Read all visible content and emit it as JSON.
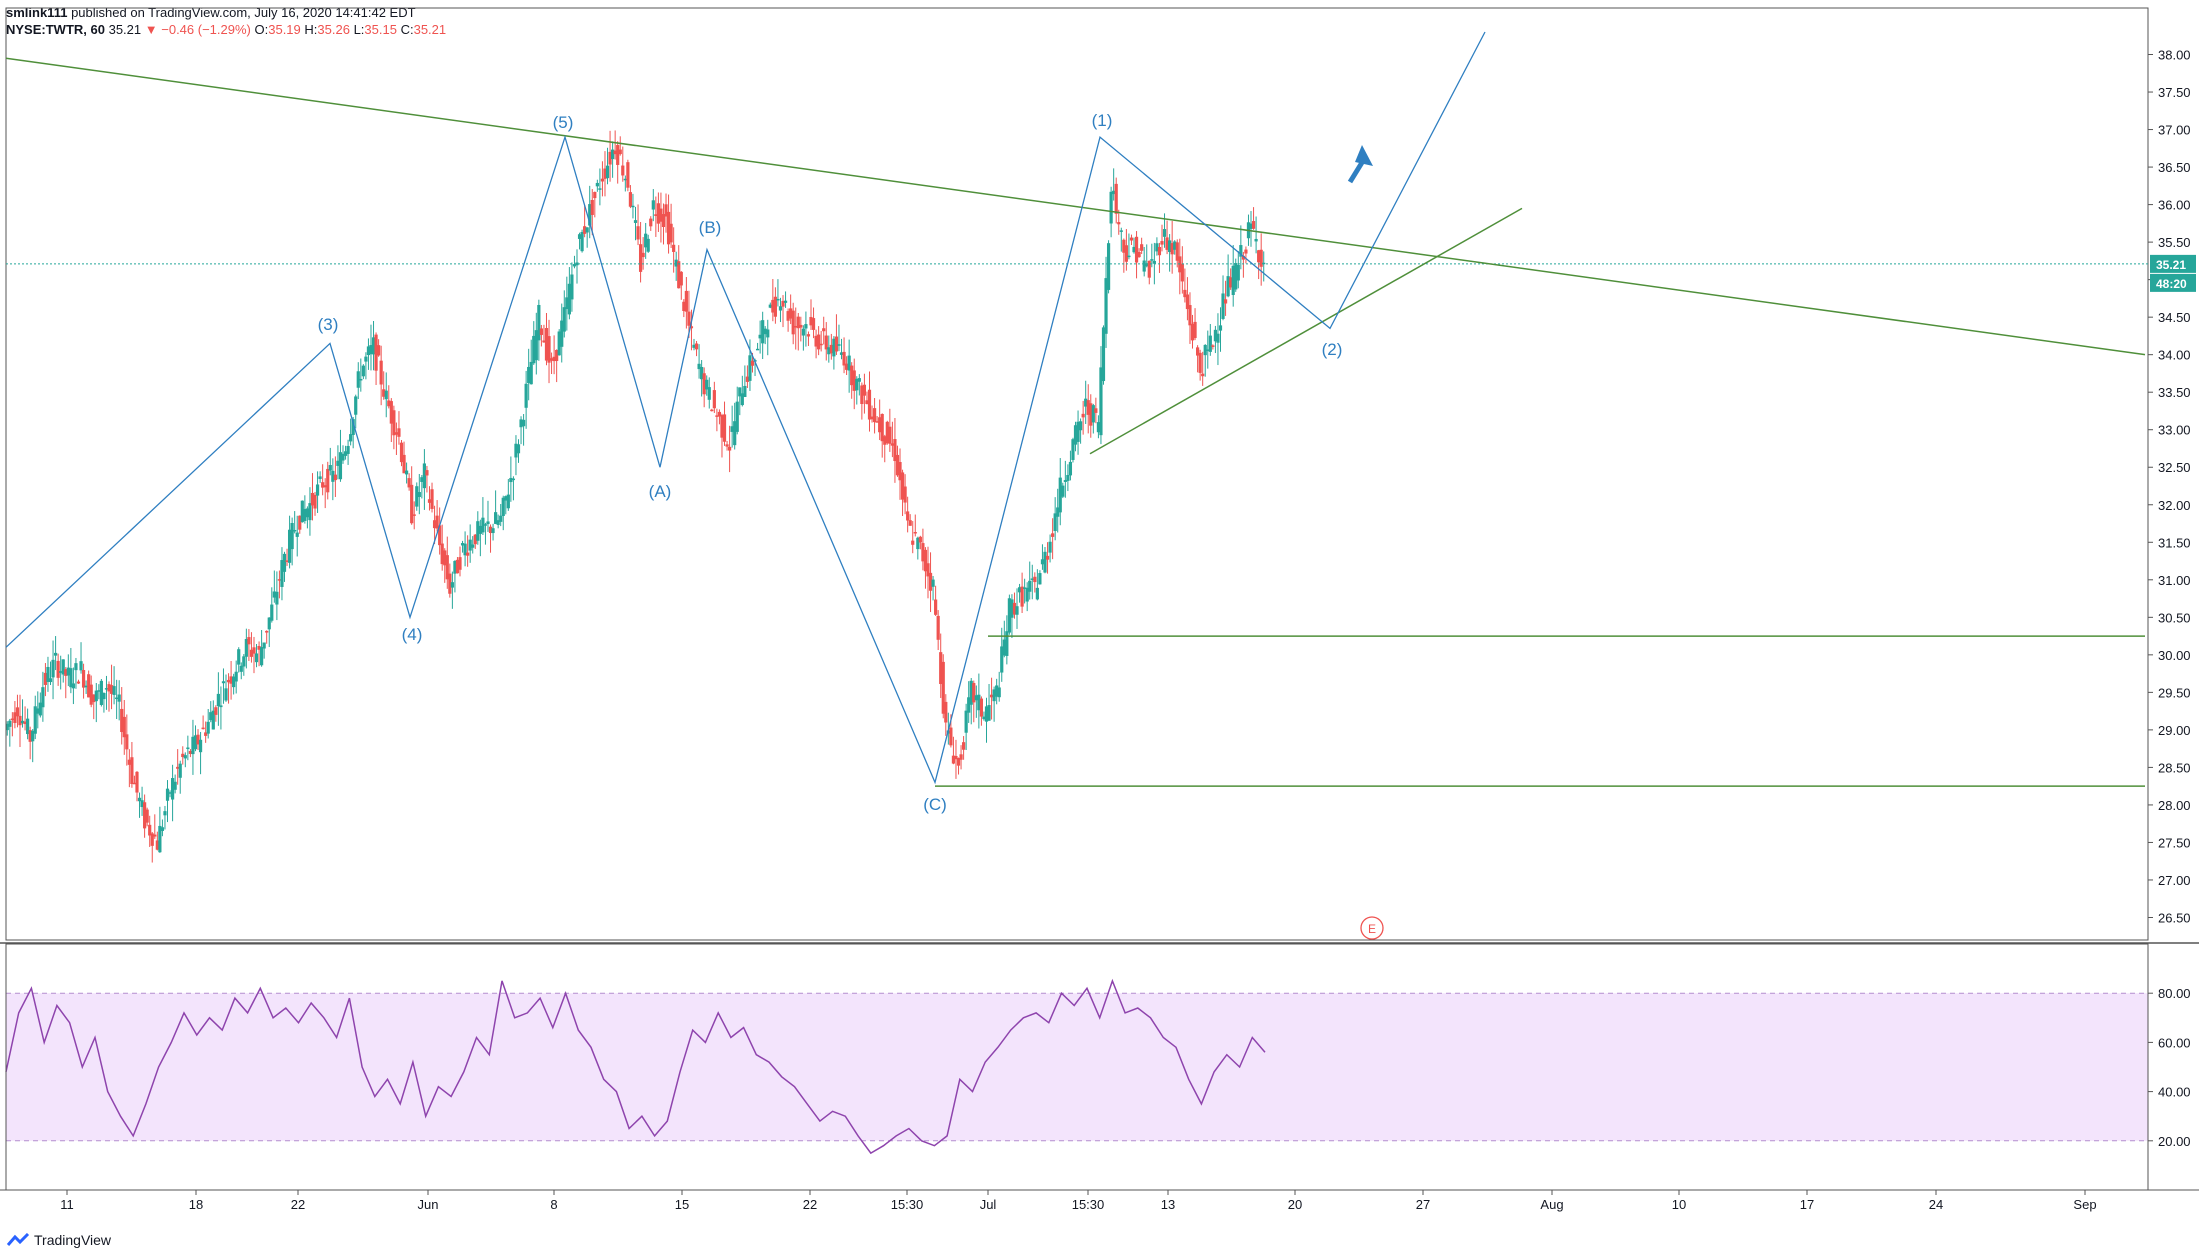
{
  "header": {
    "author": "smlink111",
    "published": "published on TradingView.com, July 16, 2020 14:41:42 EDT",
    "symbol": "NYSE:TWTR, 60",
    "last": "35.21",
    "change": "▼ −0.46 (−1.29%)",
    "o_label": "O:",
    "o_value": "35.19",
    "h_label": "H:",
    "h_value": "35.26",
    "l_label": "L:",
    "l_value": "35.15",
    "c_label": "C:",
    "c_value": "35.21"
  },
  "footer": {
    "brand": "TradingView"
  },
  "colors": {
    "up": "#26a69a",
    "down": "#ef5350",
    "wave": "#2f7fc1",
    "trend": "#4f8f3a",
    "rsi": "#8e44ad",
    "rsi_band": "#f3e4fc",
    "price_tag": "#26a69a"
  },
  "chart_data": {
    "type": "candlestick",
    "price_axis": {
      "ticks": [
        "38.00",
        "37.50",
        "37.00",
        "36.50",
        "36.00",
        "35.50",
        "35.00",
        "34.50",
        "34.00",
        "33.50",
        "33.00",
        "32.50",
        "32.00",
        "31.50",
        "31.00",
        "30.50",
        "30.00",
        "29.50",
        "29.00",
        "28.50",
        "28.00",
        "27.50",
        "27.00",
        "26.50"
      ],
      "range": [
        26.2,
        38.3
      ],
      "last_price_tag": "35.21",
      "countdown_tag": "48:20"
    },
    "rsi_axis": {
      "ticks": [
        "80.00",
        "60.00",
        "40.00",
        "20.00"
      ],
      "range": [
        0,
        100
      ],
      "band": [
        20,
        80
      ]
    },
    "time_axis": {
      "ticks": [
        "11",
        "18",
        "22",
        "Jun",
        "8",
        "15",
        "22",
        "15:30",
        "Jul",
        "15:30",
        "13",
        "20",
        "27",
        "Aug",
        "10",
        "17",
        "24",
        "Sep"
      ]
    },
    "price_path": [
      [
        0,
        29.0
      ],
      [
        3,
        29.3
      ],
      [
        6,
        28.9
      ],
      [
        9,
        29.6
      ],
      [
        12,
        29.9
      ],
      [
        15,
        29.7
      ],
      [
        18,
        29.8
      ],
      [
        21,
        29.4
      ],
      [
        24,
        29.6
      ],
      [
        27,
        29.3
      ],
      [
        30,
        28.4
      ],
      [
        33,
        27.8
      ],
      [
        36,
        27.5
      ],
      [
        39,
        28.2
      ],
      [
        42,
        28.6
      ],
      [
        45,
        28.8
      ],
      [
        48,
        29.1
      ],
      [
        51,
        29.5
      ],
      [
        54,
        29.8
      ],
      [
        57,
        30.1
      ],
      [
        60,
        30.0
      ],
      [
        63,
        30.6
      ],
      [
        66,
        31.3
      ],
      [
        69,
        31.8
      ],
      [
        72,
        32.0
      ],
      [
        75,
        32.3
      ],
      [
        78,
        32.4
      ],
      [
        81,
        32.9
      ],
      [
        84,
        33.8
      ],
      [
        87,
        34.1
      ],
      [
        90,
        33.4
      ],
      [
        93,
        32.9
      ],
      [
        96,
        31.9
      ],
      [
        99,
        32.4
      ],
      [
        102,
        31.6
      ],
      [
        105,
        30.9
      ],
      [
        108,
        31.4
      ],
      [
        111,
        31.6
      ],
      [
        114,
        31.7
      ],
      [
        117,
        31.8
      ],
      [
        120,
        32.5
      ],
      [
        123,
        33.5
      ],
      [
        126,
        34.5
      ],
      [
        129,
        33.8
      ],
      [
        132,
        34.5
      ],
      [
        135,
        35.4
      ],
      [
        138,
        35.9
      ],
      [
        141,
        36.4
      ],
      [
        144,
        36.8
      ],
      [
        147,
        36.3
      ],
      [
        150,
        35.2
      ],
      [
        153,
        36.0
      ],
      [
        156,
        35.8
      ],
      [
        159,
        35.0
      ],
      [
        162,
        34.2
      ],
      [
        165,
        33.6
      ],
      [
        168,
        33.2
      ],
      [
        171,
        32.8
      ],
      [
        174,
        33.6
      ],
      [
        177,
        34.0
      ],
      [
        180,
        34.5
      ],
      [
        183,
        34.8
      ],
      [
        186,
        34.4
      ],
      [
        189,
        34.4
      ],
      [
        192,
        34.2
      ],
      [
        195,
        34.1
      ],
      [
        198,
        34.0
      ],
      [
        201,
        33.6
      ],
      [
        204,
        33.3
      ],
      [
        207,
        33.0
      ],
      [
        210,
        32.7
      ],
      [
        213,
        31.7
      ],
      [
        216,
        31.4
      ],
      [
        219,
        30.9
      ],
      [
        222,
        29.0
      ],
      [
        225,
        28.5
      ],
      [
        228,
        29.5
      ],
      [
        231,
        29.2
      ],
      [
        234,
        29.5
      ],
      [
        237,
        30.6
      ],
      [
        240,
        30.8
      ],
      [
        243,
        30.9
      ],
      [
        246,
        31.4
      ],
      [
        249,
        32.2
      ],
      [
        252,
        32.8
      ],
      [
        255,
        33.3
      ],
      [
        258,
        33.1
      ],
      [
        261,
        36.3
      ],
      [
        264,
        35.4
      ],
      [
        267,
        35.4
      ],
      [
        270,
        35.1
      ],
      [
        273,
        35.6
      ],
      [
        276,
        35.4
      ],
      [
        279,
        34.6
      ],
      [
        282,
        33.8
      ],
      [
        285,
        34.2
      ],
      [
        288,
        34.8
      ],
      [
        291,
        35.2
      ],
      [
        294,
        35.7
      ],
      [
        297,
        35.21
      ]
    ],
    "rsi_path": [
      [
        0,
        48
      ],
      [
        3,
        72
      ],
      [
        6,
        82
      ],
      [
        9,
        60
      ],
      [
        12,
        75
      ],
      [
        15,
        68
      ],
      [
        18,
        50
      ],
      [
        21,
        62
      ],
      [
        24,
        40
      ],
      [
        27,
        30
      ],
      [
        30,
        22
      ],
      [
        33,
        35
      ],
      [
        36,
        50
      ],
      [
        39,
        60
      ],
      [
        42,
        72
      ],
      [
        45,
        63
      ],
      [
        48,
        70
      ],
      [
        51,
        65
      ],
      [
        54,
        78
      ],
      [
        57,
        72
      ],
      [
        60,
        82
      ],
      [
        63,
        70
      ],
      [
        66,
        74
      ],
      [
        69,
        68
      ],
      [
        72,
        76
      ],
      [
        75,
        70
      ],
      [
        78,
        62
      ],
      [
        81,
        78
      ],
      [
        84,
        50
      ],
      [
        87,
        38
      ],
      [
        90,
        45
      ],
      [
        93,
        35
      ],
      [
        96,
        52
      ],
      [
        99,
        30
      ],
      [
        102,
        42
      ],
      [
        105,
        38
      ],
      [
        108,
        48
      ],
      [
        111,
        62
      ],
      [
        114,
        55
      ],
      [
        117,
        85
      ],
      [
        120,
        70
      ],
      [
        123,
        72
      ],
      [
        126,
        78
      ],
      [
        129,
        66
      ],
      [
        132,
        80
      ],
      [
        135,
        65
      ],
      [
        138,
        58
      ],
      [
        141,
        45
      ],
      [
        144,
        40
      ],
      [
        147,
        25
      ],
      [
        150,
        30
      ],
      [
        153,
        22
      ],
      [
        156,
        28
      ],
      [
        159,
        48
      ],
      [
        162,
        65
      ],
      [
        165,
        60
      ],
      [
        168,
        72
      ],
      [
        171,
        62
      ],
      [
        174,
        66
      ],
      [
        177,
        55
      ],
      [
        180,
        52
      ],
      [
        183,
        46
      ],
      [
        186,
        42
      ],
      [
        189,
        35
      ],
      [
        192,
        28
      ],
      [
        195,
        32
      ],
      [
        198,
        30
      ],
      [
        201,
        22
      ],
      [
        204,
        15
      ],
      [
        207,
        18
      ],
      [
        210,
        22
      ],
      [
        213,
        25
      ],
      [
        216,
        20
      ],
      [
        219,
        18
      ],
      [
        222,
        22
      ],
      [
        225,
        45
      ],
      [
        228,
        40
      ],
      [
        231,
        52
      ],
      [
        234,
        58
      ],
      [
        237,
        65
      ],
      [
        240,
        70
      ],
      [
        243,
        72
      ],
      [
        246,
        68
      ],
      [
        249,
        80
      ],
      [
        252,
        75
      ],
      [
        255,
        82
      ],
      [
        258,
        70
      ],
      [
        261,
        85
      ],
      [
        264,
        72
      ],
      [
        267,
        74
      ],
      [
        270,
        70
      ],
      [
        273,
        62
      ],
      [
        276,
        58
      ],
      [
        279,
        45
      ],
      [
        282,
        35
      ],
      [
        285,
        48
      ],
      [
        288,
        55
      ],
      [
        291,
        50
      ],
      [
        294,
        62
      ],
      [
        297,
        56
      ]
    ],
    "wave_labels": [
      "(3)",
      "(4)",
      "(5)",
      "(A)",
      "(B)",
      "(C)",
      "(1)",
      "(2)"
    ],
    "earnings_marker": "E"
  }
}
